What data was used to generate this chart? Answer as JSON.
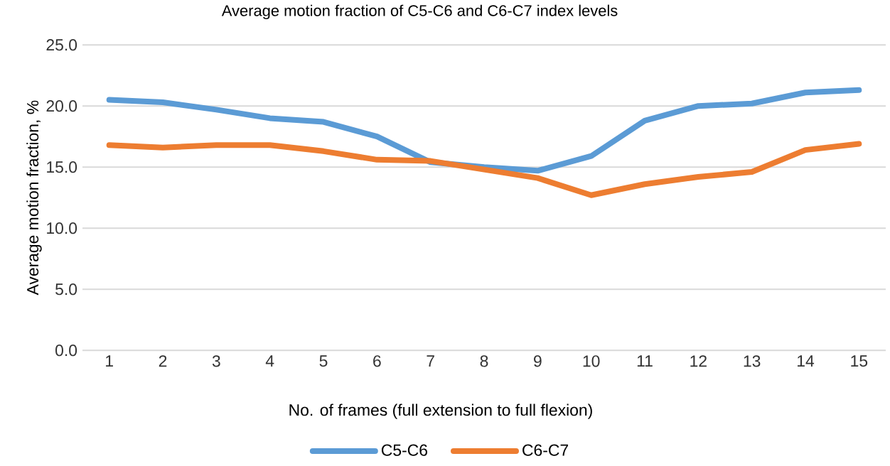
{
  "chart_data": {
    "type": "line",
    "title": "Average motion fraction of C5-C6 and C6-C7 index levels",
    "xlabel": "No. of frames (full extension to full flexion)",
    "ylabel": "Average motion fraction, %",
    "categories": [
      "1",
      "2",
      "3",
      "4",
      "5",
      "6",
      "7",
      "8",
      "9",
      "10",
      "11",
      "12",
      "13",
      "14",
      "15"
    ],
    "series": [
      {
        "name": "C5-C6",
        "color": "#5b9bd5",
        "values": [
          20.5,
          20.3,
          19.7,
          19.0,
          18.7,
          17.5,
          15.4,
          15.0,
          14.7,
          15.9,
          18.8,
          20.0,
          20.2,
          21.1,
          21.3
        ]
      },
      {
        "name": "C6-C7",
        "color": "#ed7d31",
        "values": [
          16.8,
          16.6,
          16.8,
          16.8,
          16.3,
          15.6,
          15.5,
          14.8,
          14.1,
          12.7,
          13.6,
          14.2,
          14.6,
          16.4,
          16.9
        ]
      }
    ],
    "ylim": [
      0,
      25
    ],
    "yticks": [
      {
        "value": 0,
        "label": "0.0"
      },
      {
        "value": 5,
        "label": "5.0"
      },
      {
        "value": 10,
        "label": "10.0"
      },
      {
        "value": 15,
        "label": "15.0"
      },
      {
        "value": 20,
        "label": "20.0"
      },
      {
        "value": 25,
        "label": "25.0"
      }
    ],
    "grid": "y",
    "legend": "bottom"
  }
}
